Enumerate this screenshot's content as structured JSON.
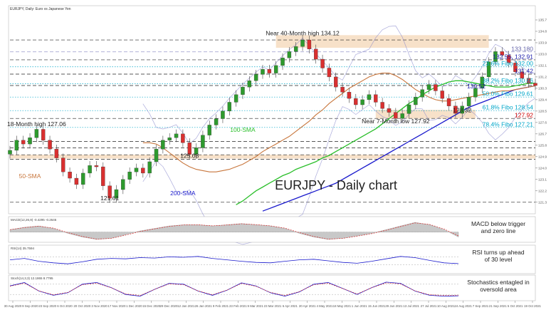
{
  "chart_data": {
    "type": "line",
    "title": "EURJPY - Daily chart",
    "symbol_label": "EURJPY, Daily: Euro vs Japanese Yen",
    "price_axis_ticks": [
      135.7,
      134.8,
      133.9,
      133.0,
      132.1,
      131.2,
      130.3,
      129.4,
      128.5,
      127.6,
      126.7,
      125.8,
      124.9,
      124.0,
      123.1,
      122.2,
      121.3
    ],
    "date_axis_ticks": [
      "30 Aug 2020",
      "9 Sep 2020",
      "23 Sep 2020",
      "6 Oct 2020",
      "20 Oct 2020",
      "3 Nov 2020",
      "17 Nov 2020",
      "1 Dec 2020",
      "15 Dec 2020",
      "29 Dec 2020",
      "12 Jan 2021",
      "26 Jan 2021",
      "9 Feb 2021",
      "23 Feb 2021",
      "9 Mar 2021",
      "23 Mar 2021",
      "6 Apr 2021",
      "20 Apr 2021",
      "4 May 2021",
      "18 May 2021",
      "1 Jun 2021",
      "15 Jun 2021",
      "29 Jun 2021",
      "13 Jul 2021",
      "27 Jul 2021",
      "10 Aug 2021",
      "24 Aug 2021",
      "7 Sep 2021",
      "21 Sep 2021",
      "5 Oct 2021",
      "19 Oct 2021"
    ],
    "ylim": [
      120.5,
      136.6
    ],
    "price_series": [
      125.4,
      126.2,
      125.9,
      126.4,
      127.06,
      126.2,
      125.5,
      124.8,
      123.7,
      123.2,
      122.7,
      123.6,
      124.2,
      124.1,
      122.6,
      121.61,
      122.3,
      123.1,
      123.7,
      124.0,
      123.6,
      124.5,
      125.5,
      126.2,
      126.4,
      126.7,
      126.0,
      125.08,
      125.6,
      126.6,
      127.4,
      127.9,
      128.5,
      129.2,
      129.8,
      130.4,
      130.9,
      131.4,
      131.8,
      131.5,
      132.1,
      132.7,
      133.2,
      133.6,
      134.12,
      133.4,
      132.6,
      131.9,
      131.2,
      130.4,
      130.0,
      129.5,
      129.0,
      129.4,
      129.8,
      129.2,
      128.7,
      128.4,
      127.92,
      128.3,
      129.0,
      129.6,
      130.2,
      130.6,
      130.1,
      129.5,
      128.9,
      128.32,
      128.9,
      129.6,
      130.3,
      131.2,
      132.4,
      133.2,
      132.91,
      132.3,
      131.6,
      131.1,
      130.7,
      130.52
    ],
    "sma_50": [
      126.0,
      126.0,
      125.9,
      125.6,
      125.2,
      124.8,
      124.4,
      124.1,
      123.9,
      123.8,
      123.7,
      123.7,
      123.8,
      123.9,
      124.1,
      124.3,
      124.6,
      124.9,
      125.3,
      125.6,
      125.9,
      126.2,
      126.5,
      126.9,
      127.3,
      127.7,
      128.2,
      128.6,
      129.1,
      129.5,
      129.9,
      130.3,
      130.6,
      130.9,
      131.2,
      131.4,
      131.5,
      131.5,
      131.3,
      131.0,
      130.6,
      130.2,
      129.9,
      129.6,
      129.4,
      129.3,
      129.3,
      129.4,
      129.5,
      129.6,
      129.7,
      129.8,
      129.9,
      130.0,
      130.1,
      130.1,
      130.2,
      130.3,
      130.4,
      130.5
    ],
    "sma_100": [
      121.1,
      121.4,
      121.8,
      122.2,
      122.5,
      122.8,
      123.1,
      123.4,
      123.6,
      123.9,
      124.1,
      124.3,
      124.5,
      124.8,
      125.0,
      125.3,
      125.6,
      125.9,
      126.2,
      126.5,
      126.8,
      127.1,
      127.5,
      127.9,
      128.3,
      128.7,
      129.1,
      129.4,
      129.8,
      130.1,
      130.4,
      130.6,
      130.8,
      130.9,
      130.9,
      130.8,
      130.7,
      130.6,
      130.5,
      130.4,
      130.4,
      130.4,
      130.5,
      130.6,
      130.7,
      130.7
    ],
    "sma_200": [
      120.6,
      120.8,
      121.0,
      121.2,
      121.4,
      121.6,
      121.8,
      122.0,
      122.2,
      122.4,
      122.6,
      122.8,
      123.1,
      123.4,
      123.7,
      124.0,
      124.3,
      124.6,
      124.9,
      125.2,
      125.5,
      125.8,
      126.1,
      126.4,
      126.7,
      127.0,
      127.3,
      127.6,
      127.9,
      128.2,
      128.5,
      128.8,
      129.0,
      129.2,
      129.4,
      129.6,
      129.8,
      130.0,
      130.2,
      130.3,
      130.4,
      130.5
    ],
    "hlines": [
      {
        "level": 134.12,
        "style": "dash",
        "color": "#222222"
      },
      {
        "level": 133.18,
        "style": "dash",
        "color": "#9999cc"
      },
      {
        "level": 132.55,
        "style": "dash",
        "color": "#222222"
      },
      {
        "level": 132.0,
        "style": "dot",
        "color": "#00a6c8"
      },
      {
        "level": 131.42,
        "style": "dash",
        "color": "#222222"
      },
      {
        "level": 130.66,
        "style": "dot",
        "color": "#00a6c8"
      },
      {
        "level": 130.52,
        "style": "dash",
        "color": "#222222"
      },
      {
        "level": 129.61,
        "style": "dot",
        "color": "#00a6c8"
      },
      {
        "level": 128.54,
        "style": "dot",
        "color": "#00a6c8"
      },
      {
        "level": 127.92,
        "style": "dash",
        "color": "#222222"
      },
      {
        "level": 127.21,
        "style": "dot",
        "color": "#00a6c8"
      },
      {
        "level": 126.1,
        "style": "dash",
        "color": "#222222"
      },
      {
        "level": 125.6,
        "style": "dash",
        "color": "#222222"
      },
      {
        "level": 125.05,
        "style": "dash",
        "color": "#222222"
      },
      {
        "level": 124.7,
        "style": "dash",
        "color": "#222222"
      },
      {
        "level": 121.3,
        "style": "dash",
        "color": "#222222"
      }
    ],
    "zones": [
      {
        "from": 133.5,
        "to": 134.5,
        "color": "#f6dcc0"
      },
      {
        "from": 127.9,
        "to": 128.6,
        "color": "#f6dcc0"
      },
      {
        "from": 124.75,
        "to": 125.05,
        "color": "#f6dcc0"
      }
    ],
    "level_labels": [
      {
        "text": "133.180",
        "price": 133.18,
        "color": "#6666aa"
      },
      {
        "text": "132.55, 132.91",
        "price": 132.55,
        "color": "#1a1aaa"
      },
      {
        "text": "23.6% Fibo 132.00",
        "price": 132.0,
        "color": "#00a6c8"
      },
      {
        "text": "131.42",
        "price": 131.42,
        "color": "#1a1aaa"
      },
      {
        "text": "38.2% Fibo 130.66",
        "price": 130.66,
        "color": "#00a6c8"
      },
      {
        "text": "130.52",
        "price": 130.22,
        "color": "#1a1aaa"
      },
      {
        "text": "50.0% Fibo 129.61",
        "price": 129.61,
        "color": "#00a6c8"
      },
      {
        "text": "61.8% Fibo 128.54",
        "price": 128.54,
        "color": "#00a6c8"
      },
      {
        "text": "127.92",
        "price": 127.92,
        "color": "#cc0000"
      },
      {
        "text": "78.4% Fibo 127.21",
        "price": 127.21,
        "color": "#00a6c8"
      }
    ],
    "annotations": [
      {
        "text": "Near 40-Month high 134.12",
        "price": 134.5,
        "index": 44,
        "color": "#222222"
      },
      {
        "text": "18-Month high 127.06",
        "price": 127.3,
        "index": 4,
        "color": "#222222"
      },
      {
        "text": "Near 7-Month low 127.92",
        "price": 127.55,
        "index": 58,
        "color": "#222222"
      },
      {
        "text": "128.32",
        "price": 128.4,
        "index": 68,
        "color": "#222222"
      },
      {
        "text": "125.08",
        "price": 124.8,
        "index": 27,
        "color": "#222222"
      },
      {
        "text": "121.61",
        "price": 121.45,
        "index": 15,
        "color": "#222222"
      },
      {
        "text": "100-SMA",
        "price": 126.85,
        "index": 35,
        "color": "#2bbf2b"
      },
      {
        "text": "50-SMA",
        "price": 123.2,
        "index": 3,
        "color": "#c8763c"
      },
      {
        "text": "200-SMA",
        "price": 121.85,
        "index": 26,
        "color": "#1a1acc"
      }
    ],
    "series_colors": {
      "price": "#555555",
      "sma_50": "#c8763c",
      "sma_100": "#2bbf2b",
      "sma_200": "#1a1acc",
      "bands": "#8888cc"
    },
    "indicators": [
      {
        "name": "MACD",
        "label": "MACD(12,26,9) -0.4295 -0.2646",
        "note": "MACD below trigger and zero line",
        "values": [
          0.2,
          0.4,
          0.5,
          0.3,
          -0.1,
          -0.4,
          -0.6,
          -0.5,
          -0.2,
          0.1,
          0.3,
          0.5,
          0.6,
          0.6,
          0.5,
          0.6,
          0.7,
          0.6,
          0.5,
          0.3,
          -0.1,
          -0.4,
          -0.6,
          -0.5,
          -0.3,
          -0.1,
          0.2,
          0.5,
          0.8,
          0.6,
          0.2,
          -0.4
        ]
      },
      {
        "name": "RSI",
        "label": "RSI(14) 35.7594",
        "note": "RSI turns up ahead of 30 level",
        "values": [
          55,
          62,
          48,
          40,
          35,
          45,
          58,
          62,
          60,
          66,
          64,
          70,
          68,
          72,
          62,
          55,
          48,
          42,
          40,
          48,
          55,
          58,
          50,
          42,
          38,
          48,
          60,
          72,
          66,
          52,
          40,
          36
        ]
      },
      {
        "name": "Stochastics",
        "label": "Stoch(14,3,3) 12.1865 8.7795",
        "note": "Stochastics entagled in oversold area",
        "values": [
          70,
          90,
          40,
          15,
          30,
          80,
          90,
          60,
          20,
          10,
          50,
          85,
          80,
          40,
          15,
          45,
          88,
          70,
          30,
          10,
          35,
          80,
          90,
          55,
          20,
          60,
          92,
          85,
          40,
          15,
          10,
          12
        ]
      }
    ]
  }
}
